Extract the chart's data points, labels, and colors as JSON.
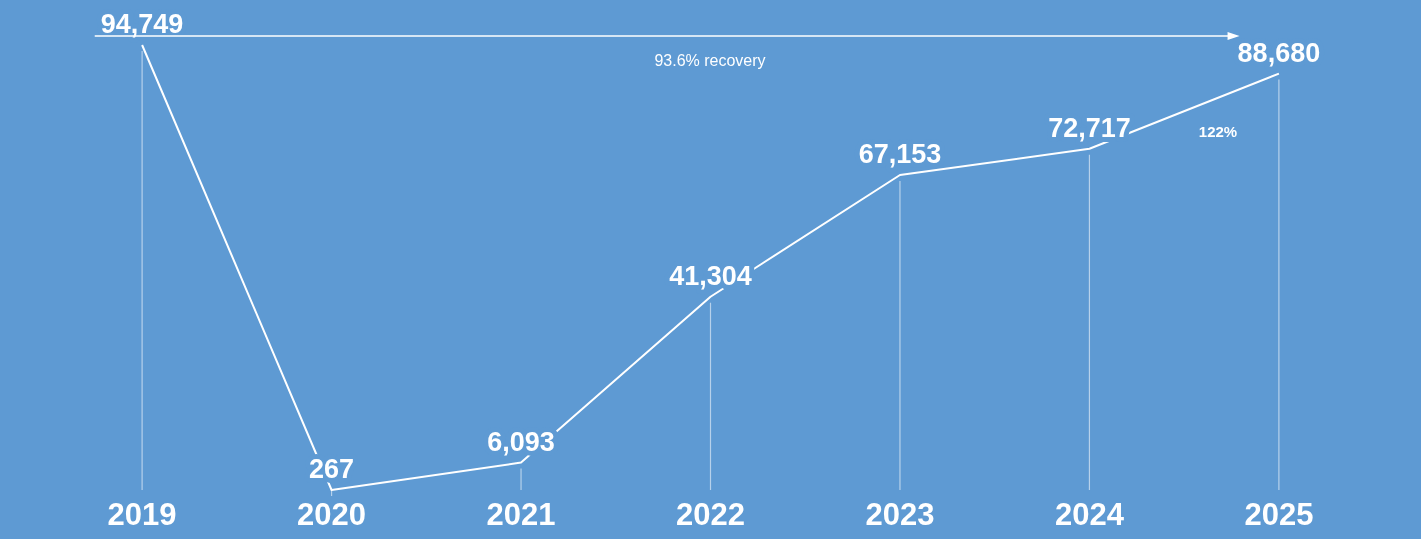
{
  "chart_data": {
    "type": "line",
    "categories": [
      "2019",
      "2020",
      "2021",
      "2022",
      "2023",
      "2024",
      "2025"
    ],
    "series": [
      {
        "color": "#ffffff",
        "values": [
          94749,
          267,
          6093,
          41304,
          67153,
          72717,
          88680
        ],
        "value_labels": [
          "94,749",
          "267",
          "6,093",
          "41,304",
          "67,153",
          "72,717",
          "88,680"
        ]
      }
    ],
    "tick_labels": "x",
    "grid": "x",
    "annotations": [
      "93.6% recovery",
      "122%"
    ]
  }
}
